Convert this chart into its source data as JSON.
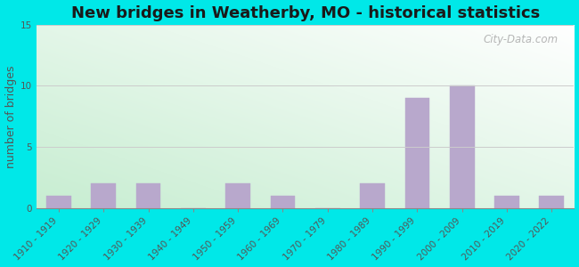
{
  "title": "New bridges in Weatherby, MO - historical statistics",
  "ylabel": "number of bridges",
  "categories": [
    "1910 - 1919",
    "1920 - 1929",
    "1930 - 1939",
    "1940 - 1949",
    "1950 - 1959",
    "1960 - 1969",
    "1970 - 1979",
    "1980 - 1989",
    "1990 - 1999",
    "2000 - 2009",
    "2010 - 2019",
    "2020 - 2022"
  ],
  "values": [
    1,
    2,
    2,
    0,
    2,
    1,
    0,
    2,
    9,
    10,
    1,
    1
  ],
  "bar_color": "#b8a8cc",
  "bar_edge_color": "#b8a8cc",
  "ylim": [
    0,
    15
  ],
  "yticks": [
    0,
    5,
    10,
    15
  ],
  "figure_bg": "#00e8e8",
  "plot_bg_topleft": "#d0ecd8",
  "plot_bg_topright": "#ffffff",
  "plot_bg_bottomleft": "#aadfc0",
  "plot_bg_bottomright": "#f0fff8",
  "title_fontsize": 13,
  "ylabel_fontsize": 9,
  "tick_fontsize": 7.5,
  "watermark_text": "City-Data.com",
  "grid_color": "#cccccc"
}
